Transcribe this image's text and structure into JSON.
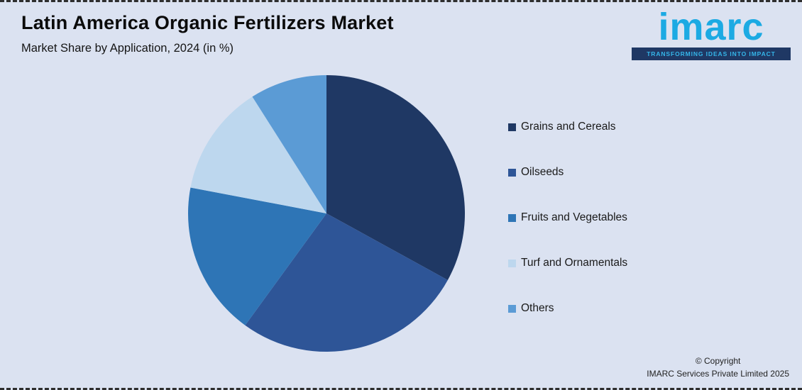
{
  "header": {
    "title": "Latin America Organic Fertilizers Market",
    "subtitle": "Market Share by Application, 2024 (in %)"
  },
  "logo": {
    "text": "imarc",
    "tagline": "TRANSFORMING IDEAS INTO IMPACT"
  },
  "chart_data": {
    "type": "pie",
    "title": "Latin America Organic Fertilizers Market - Market Share by Application, 2024 (in %)",
    "start_angle_deg": -90,
    "direction": "clockwise",
    "legend_position": "right",
    "slices": [
      {
        "label": "Grains and Cereals",
        "value": 33,
        "color": "#1f3864"
      },
      {
        "label": "Oilseeds",
        "value": 27,
        "color": "#2e5597"
      },
      {
        "label": "Fruits and Vegetables",
        "value": 18,
        "color": "#2e75b6"
      },
      {
        "label": "Turf and Ornamentals",
        "value": 13,
        "color": "#bdd7ee"
      },
      {
        "label": "Others",
        "value": 9,
        "color": "#5b9bd5"
      }
    ]
  },
  "footer": {
    "copyright_line1": "© Copyright",
    "copyright_line2": "IMARC Services Private Limited 2025"
  },
  "colors": {
    "background": "#dbe2f1",
    "accent_cyan": "#1caae3",
    "navy": "#1f3864"
  }
}
